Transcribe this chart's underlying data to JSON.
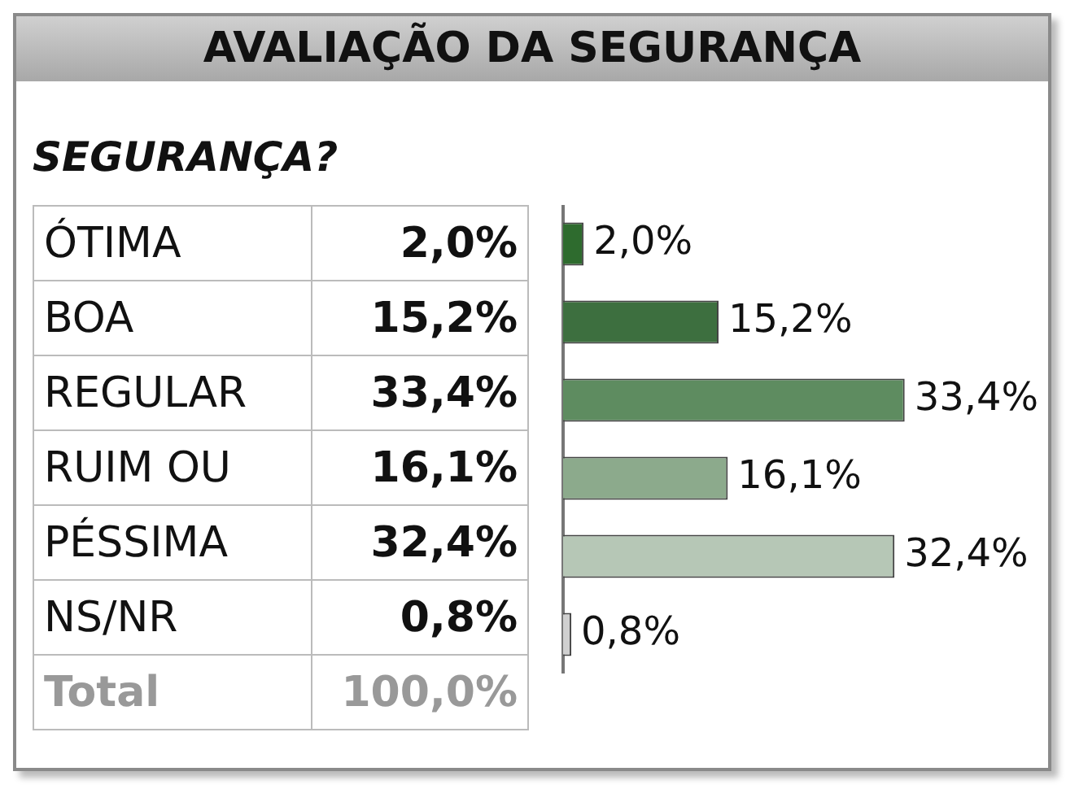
{
  "chart_data": {
    "type": "bar",
    "orientation": "horizontal",
    "title": "AVALIAÇÃO DA SEGURANÇA",
    "subtitle": "SEGURANÇA?",
    "categories": [
      "ÓTIMA",
      "BOA",
      "REGULAR",
      "RUIM OU",
      "PÉSSIMA",
      "NS/NR"
    ],
    "values": [
      2.0,
      15.2,
      33.4,
      16.1,
      32.4,
      0.8
    ],
    "value_labels": [
      "2,0%",
      "15,2%",
      "33,4%",
      "16,1%",
      "32,4%",
      "0,8%"
    ],
    "colors": [
      "#2e6b2e",
      "#3d6f3f",
      "#5e8c60",
      "#8caa8c",
      "#b6c7b6",
      "#cfcfcf"
    ],
    "data_labels": true,
    "annotations": [
      "Total",
      "100,0%"
    ],
    "legend": false,
    "tick_labels": false
  }
}
